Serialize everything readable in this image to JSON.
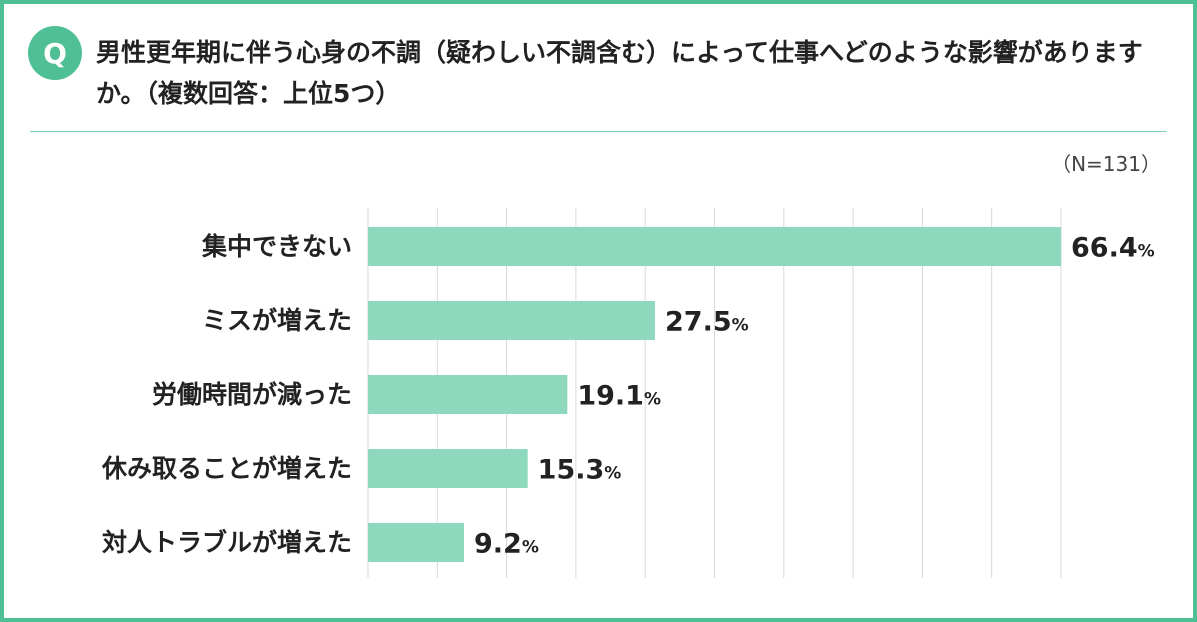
{
  "question": {
    "badge": "Q",
    "text": "男性更年期に伴う心身の不調（疑わしい不調含む）によって仕事へどのような影響がありますか。（複数回答：上位5つ）"
  },
  "sample_size": "（N=131）",
  "colors": {
    "accent": "#4fbf95",
    "bar": "#8ed9be",
    "grid": "#d9d9d9"
  },
  "chart_data": {
    "type": "bar",
    "orientation": "horizontal",
    "categories": [
      "集中できない",
      "ミスが増えた",
      "労働時間が減った",
      "休み取ることが増えた",
      "対人トラブルが増えた"
    ],
    "values": [
      66.4,
      27.5,
      19.1,
      15.3,
      9.2
    ],
    "value_suffix": "%",
    "xlim": [
      0,
      66.4
    ],
    "grid": true,
    "legend": "none"
  }
}
